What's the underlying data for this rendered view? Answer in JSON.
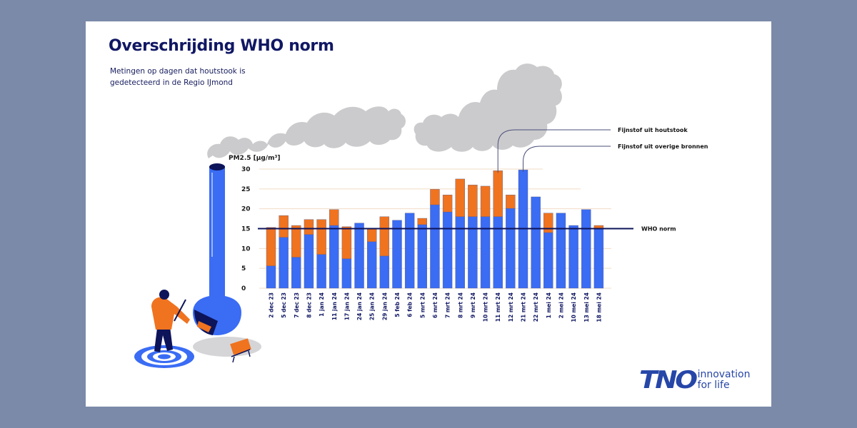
{
  "header": {
    "title": "Overschrijding WHO norm",
    "subtitle": "Metingen op dagen dat houtstook is gedetecteerd in de Regio IJmond"
  },
  "logo": {
    "mark": "TNO",
    "tagline_line1": "innovation",
    "tagline_line2": "for life"
  },
  "colors": {
    "houtstook": "#f0731f",
    "overige": "#3a6cf4",
    "who_line": "#0d1459",
    "grid": "#f2dcc4",
    "smoke": "#cbcbcd",
    "background": "#7b8aa8"
  },
  "chart_data": {
    "type": "bar",
    "stacked": true,
    "title": "Overschrijding WHO norm",
    "subtitle": "Metingen op dagen dat houtstook is gedetecteerd in de Regio IJmond",
    "xlabel": "",
    "ylabel": "PM2.5 [µg/m³]",
    "ylim": [
      0,
      30
    ],
    "yticks": [
      0,
      5,
      10,
      15,
      20,
      25,
      30
    ],
    "grid": true,
    "categories": [
      "2 dec 23",
      "5 dec 23",
      "7 dec 23",
      "8 dec 23",
      "1 jan 24",
      "11 jan 24",
      "17 jan 24",
      "24 jan 24",
      "25 jan 24",
      "29 jan 24",
      "5 feb 24",
      "6 feb 24",
      "5 mrt 24",
      "6 mrt 24",
      "7 mrt 24",
      "8 mrt 24",
      "9 mrt 24",
      "10 mrt 24",
      "11 mrt 24",
      "12 mrt 24",
      "21 mrt 24",
      "22 mrt 24",
      "1 mei 24",
      "2 mei 24",
      "10 mei 24",
      "13 mei 24",
      "18 mei 24"
    ],
    "series": [
      {
        "name": "Fijnstof uit overige bronnen",
        "color": "#3a6cf4",
        "values": [
          5.6,
          12.8,
          7.8,
          13.5,
          8.5,
          15.8,
          7.4,
          16.4,
          11.7,
          8.1,
          17.1,
          18.9,
          16.0,
          21.0,
          19.2,
          18.0,
          18.0,
          18.0,
          18.0,
          20.1,
          29.8,
          23.0,
          14.0,
          18.9,
          15.8,
          19.8,
          15.0
        ]
      },
      {
        "name": "Fijnstof uit houtstook",
        "color": "#f0731f",
        "values": [
          9.7,
          5.5,
          8.0,
          3.8,
          8.8,
          4.0,
          8.1,
          0,
          3.2,
          9.9,
          0,
          0,
          1.6,
          3.9,
          4.3,
          9.5,
          8.0,
          7.7,
          11.6,
          3.4,
          0,
          0,
          4.9,
          0,
          0,
          0,
          0.8
        ]
      }
    ],
    "reference_line": {
      "label": "WHO norm",
      "value": 15
    },
    "annotations": [
      {
        "label": "Fijnstof uit houtstook",
        "points_to": "11 mrt 24",
        "series": "Fijnstof uit houtstook"
      },
      {
        "label": "Fijnstof uit overige bronnen",
        "points_to": "21 mrt 24",
        "series": "Fijnstof uit overige bronnen"
      }
    ]
  }
}
